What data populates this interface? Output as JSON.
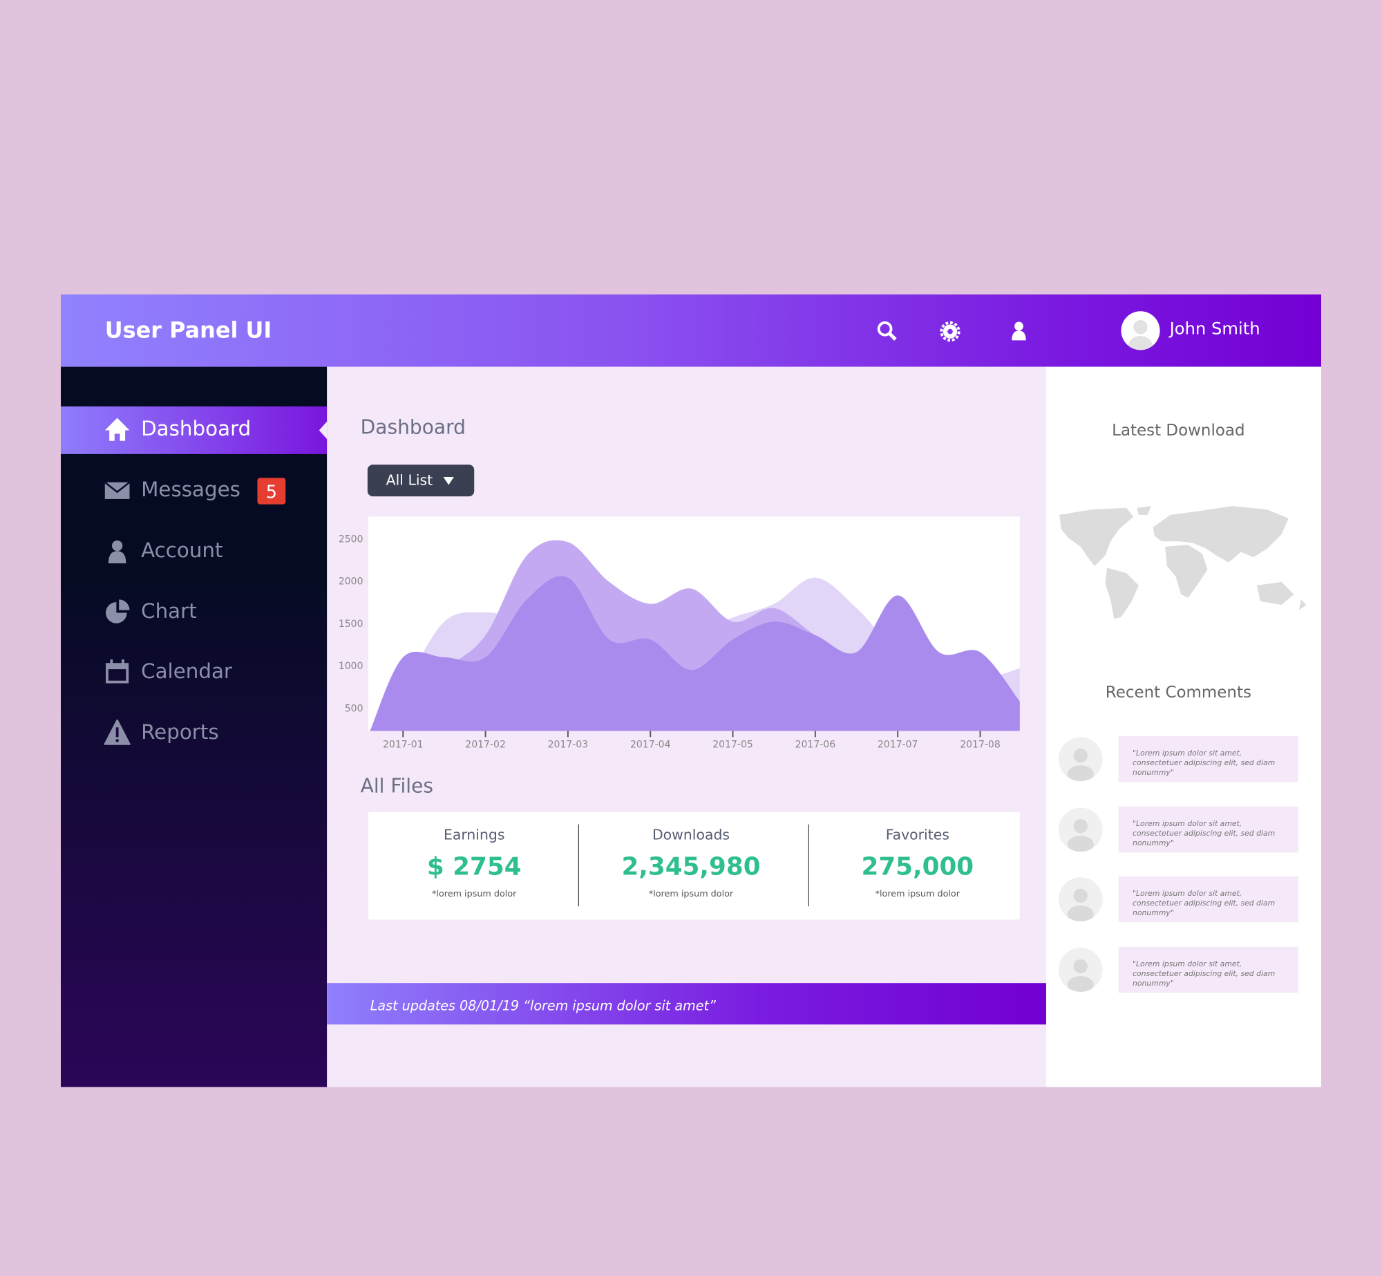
{
  "header": {
    "title": "User Panel UI",
    "user": "John Smith"
  },
  "sidebar": {
    "items": [
      {
        "label": "Dashboard"
      },
      {
        "label": "Messages",
        "badge": "5"
      },
      {
        "label": "Account"
      },
      {
        "label": "Chart"
      },
      {
        "label": "Calendar"
      },
      {
        "label": "Reports"
      }
    ]
  },
  "main": {
    "title": "Dashboard",
    "dropdown": "All List",
    "files_title": "All Files",
    "stats": [
      {
        "label": "Earnings",
        "value": "$ 2754",
        "note": "*lorem ipsum dolor"
      },
      {
        "label": "Downloads",
        "value": "2,345,980",
        "note": "*lorem ipsum dolor"
      },
      {
        "label": "Favorites",
        "value": "275,000",
        "note": "*lorem ipsum dolor"
      }
    ],
    "footer": "Last updates 08/01/19 “lorem ipsum dolor sit amet”"
  },
  "chart": {
    "type": "area",
    "x": [
      0.6,
      1,
      1.5,
      2,
      2.5,
      3,
      3.5,
      4,
      4.5,
      5,
      5.5,
      6,
      6.5,
      7,
      7.5,
      8,
      8.48
    ],
    "series": [
      {
        "color": "#e2d6f8",
        "values": [
          240,
          740,
          1520,
          1630,
          1570,
          1780,
          1680,
          1570,
          1360,
          1570,
          1730,
          2040,
          1680,
          1160,
          900,
          840,
          970
        ]
      },
      {
        "color": "#c3a9f2",
        "values": [
          230,
          530,
          950,
          1360,
          2300,
          2460,
          1990,
          1730,
          1910,
          1520,
          1680,
          1360,
          1100,
          1210,
          950,
          640,
          580
        ]
      },
      {
        "color": "#a98bee",
        "values": [
          230,
          1100,
          1100,
          1100,
          1780,
          2040,
          1310,
          1310,
          950,
          1310,
          1520,
          1360,
          1160,
          1830,
          1160,
          1160,
          580
        ]
      }
    ],
    "xlim": [
      0.58,
      8.48
    ],
    "ylim": [
      230,
      2760
    ],
    "xticks": [
      {
        "value": 1,
        "label": "2017-01"
      },
      {
        "value": 2,
        "label": "2017-02"
      },
      {
        "value": 3,
        "label": "2017-03"
      },
      {
        "value": 4,
        "label": "2017-04"
      },
      {
        "value": 5,
        "label": "2017-05"
      },
      {
        "value": 6,
        "label": "2017-06"
      },
      {
        "value": 7,
        "label": "2017-07"
      },
      {
        "value": 8,
        "label": "2017-08"
      }
    ],
    "yticks": [
      500,
      1000,
      1500,
      2000,
      2500
    ]
  },
  "right": {
    "download_title": "Latest Download",
    "comments_title": "Recent Comments",
    "comments": [
      "\"Lorem ipsum dolor sit amet, consectetuer adipiscing elit, sed diam nonummy\"",
      "\"Lorem ipsum dolor sit amet, consectetuer adipiscing elit, sed diam nonummy\"",
      "\"Lorem ipsum dolor sit amet, consectetuer adipiscing elit, sed diam nonummy\"",
      "\"Lorem ipsum dolor sit amet, consectetuer adipiscing elit, sed diam nonummy\""
    ]
  }
}
